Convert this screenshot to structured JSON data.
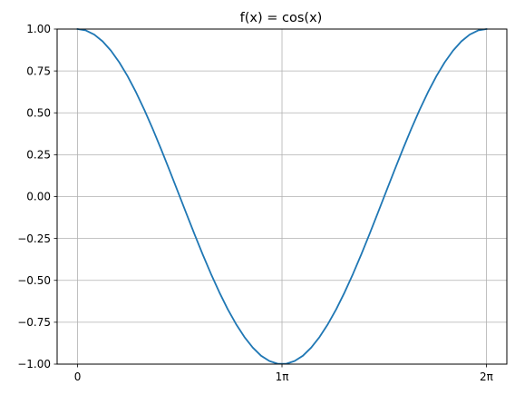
{
  "chart_data": {
    "type": "line",
    "title": "f(x) = cos(x)",
    "xlabel": "",
    "ylabel": "",
    "xlim": [
      -0.314,
      6.597
    ],
    "ylim": [
      -1.0,
      1.0
    ],
    "grid": true,
    "x_ticks": [
      {
        "value": 0,
        "label": "0"
      },
      {
        "value": 3.14159,
        "label": "1π"
      },
      {
        "value": 6.28319,
        "label": "2π"
      }
    ],
    "y_ticks": [
      {
        "value": -1.0,
        "label": "−1.00"
      },
      {
        "value": -0.75,
        "label": "−0.75"
      },
      {
        "value": -0.5,
        "label": "−0.50"
      },
      {
        "value": -0.25,
        "label": "−0.25"
      },
      {
        "value": 0.0,
        "label": "0.00"
      },
      {
        "value": 0.25,
        "label": "0.25"
      },
      {
        "value": 0.5,
        "label": "0.50"
      },
      {
        "value": 0.75,
        "label": "0.75"
      },
      {
        "value": 1.0,
        "label": "1.00"
      }
    ],
    "series": [
      {
        "color": "#1f77b4",
        "x": [
          0.0,
          0.1282,
          0.2565,
          0.3847,
          0.5129,
          0.6411,
          0.7694,
          0.8976,
          1.0258,
          1.1541,
          1.2823,
          1.4105,
          1.5387,
          1.667,
          1.7952,
          1.9234,
          2.0516,
          2.1799,
          2.3081,
          2.4363,
          2.5646,
          2.6928,
          2.821,
          2.9492,
          3.0775,
          3.2057,
          3.3339,
          3.4622,
          3.5904,
          3.7186,
          3.8468,
          3.9751,
          4.1033,
          4.2315,
          4.3597,
          4.488,
          4.6162,
          4.7444,
          4.8727,
          5.0009,
          5.1291,
          5.2573,
          5.3856,
          5.5138,
          5.642,
          5.7703,
          5.8985,
          6.0267,
          6.1549,
          6.2832
        ],
        "y": [
          1.0,
          0.9918,
          0.9673,
          0.9269,
          0.8713,
          0.8014,
          0.7183,
          0.6235,
          0.5184,
          0.4048,
          0.2845,
          0.1596,
          0.0321,
          -0.096,
          -0.2225,
          -0.3455,
          -0.4625,
          -0.5721,
          -0.6723,
          -0.7614,
          -0.8382,
          -0.9014,
          -0.9502,
          -0.9815,
          -0.9979,
          -0.9979,
          -0.9815,
          -0.9502,
          -0.9014,
          -0.8382,
          -0.7614,
          -0.6723,
          -0.5721,
          -0.4625,
          -0.3455,
          -0.2225,
          -0.096,
          0.0321,
          0.1596,
          0.2845,
          0.4048,
          0.5184,
          0.6235,
          0.7183,
          0.8014,
          0.8713,
          0.9269,
          0.9673,
          0.9918,
          1.0
        ]
      }
    ]
  }
}
